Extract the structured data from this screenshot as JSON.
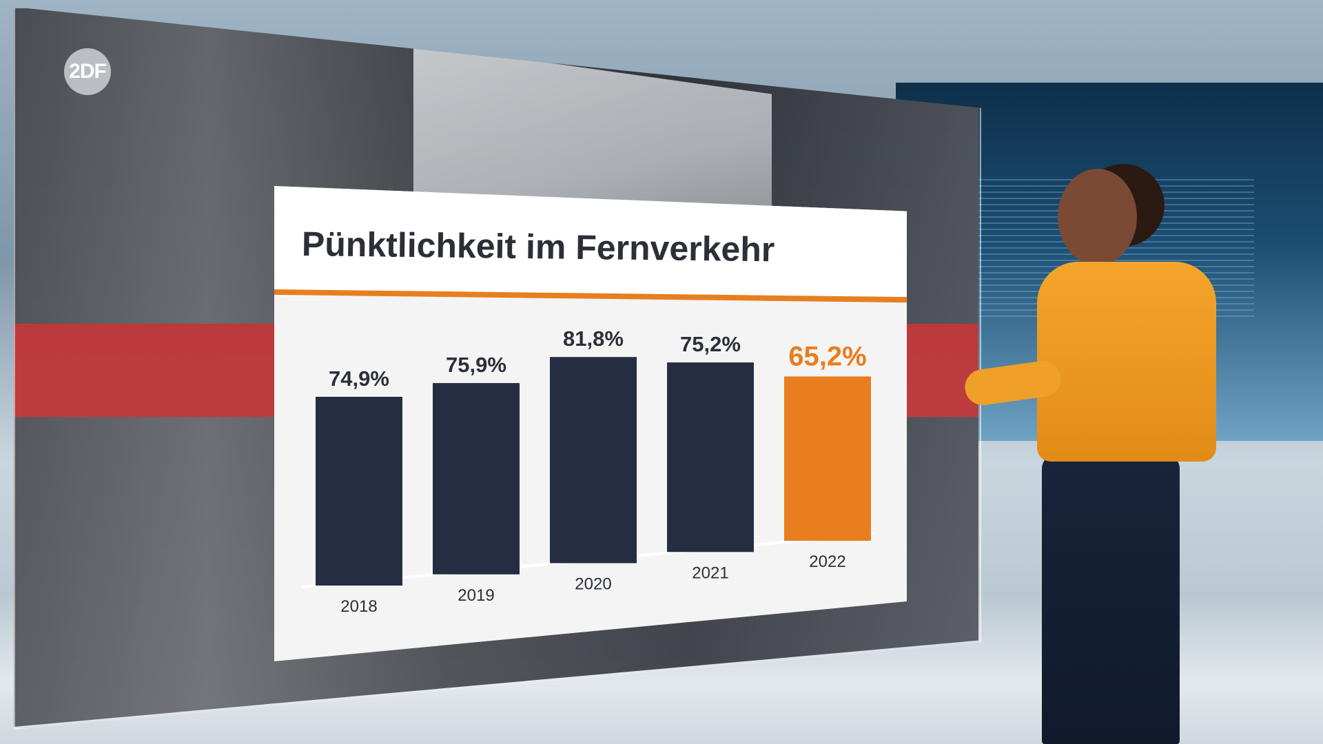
{
  "broadcaster_logo": "2DF",
  "colors": {
    "bar": "#252d42",
    "highlight": "#e87e1e",
    "title": "#2c2f38",
    "panel": "#f4f4f4"
  },
  "chart_data": {
    "type": "bar",
    "title": "Pünktlichkeit im Fernverkehr",
    "categories": [
      "2018",
      "2019",
      "2020",
      "2021",
      "2022"
    ],
    "values": [
      74.9,
      75.9,
      81.8,
      75.2,
      65.2
    ],
    "value_labels": [
      "74,9%",
      "75,9%",
      "81,8%",
      "75,2%",
      "65,2%"
    ],
    "highlight_category": "2022",
    "xlabel": "",
    "ylabel": "",
    "ylim": [
      0,
      82
    ],
    "grid": false,
    "legend": "none"
  }
}
